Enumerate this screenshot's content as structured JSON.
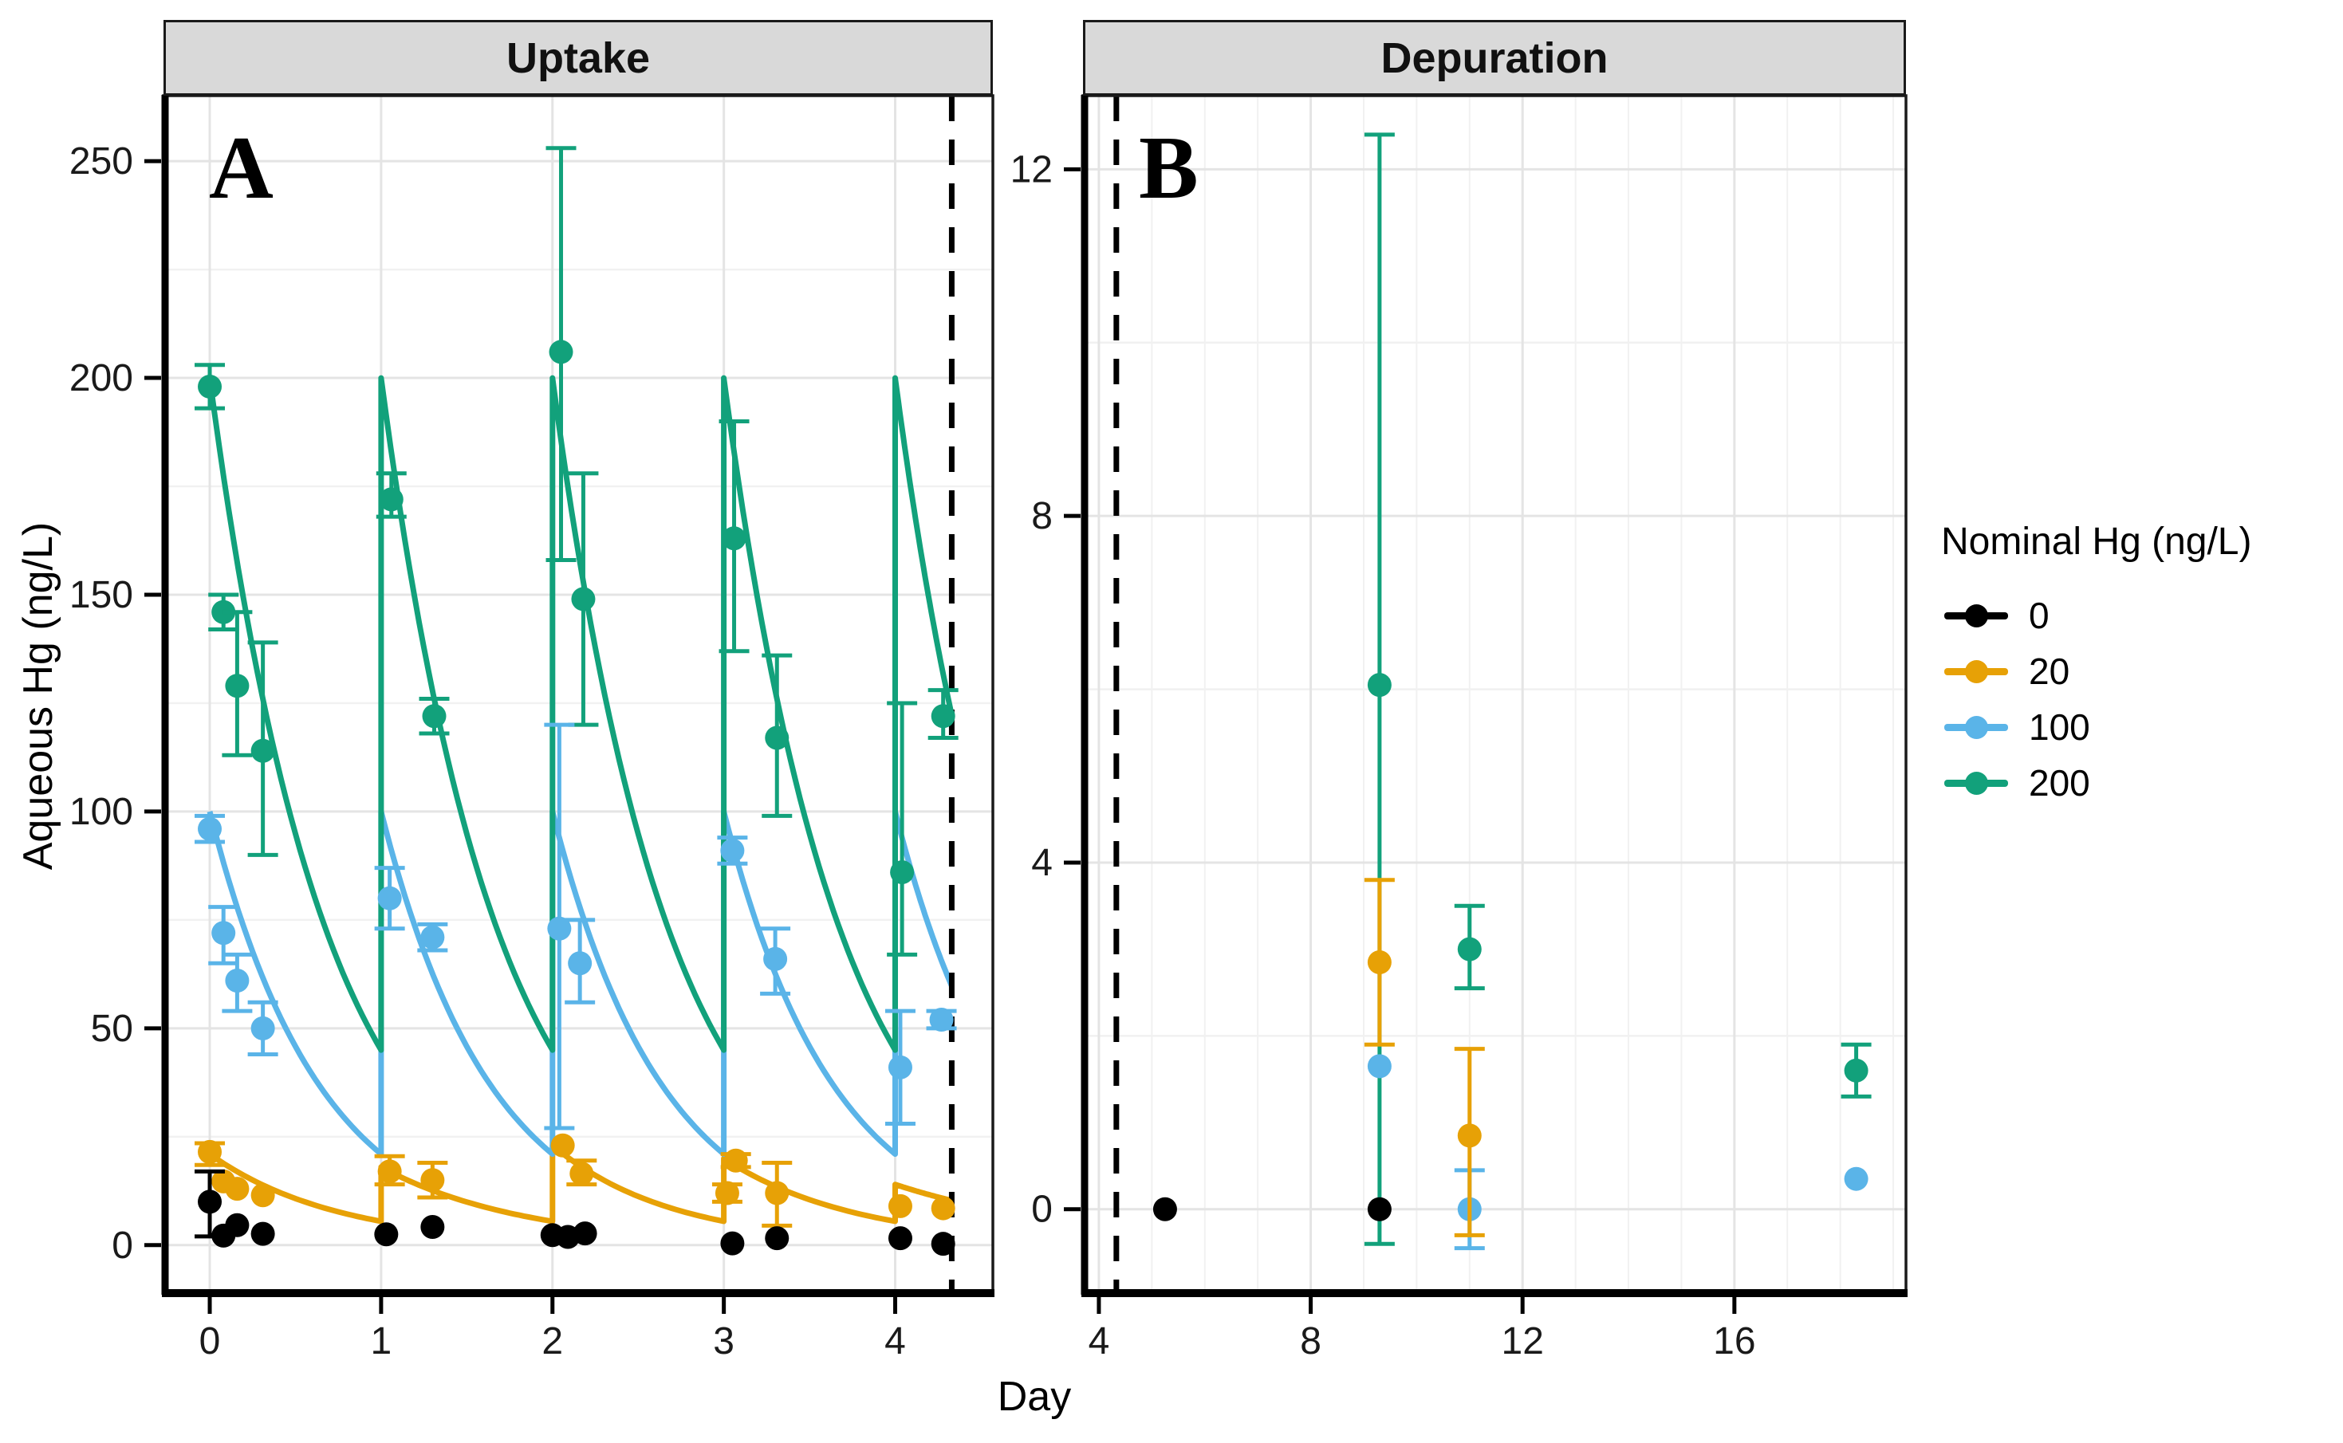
{
  "figure": {
    "x_axis_title": "Day",
    "y_axis_title": "Aqueous Hg (ng/L)",
    "panel_a": {
      "strip_label": "Uptake",
      "letter": "A"
    },
    "panel_b": {
      "strip_label": "Depuration",
      "letter": "B"
    },
    "legend": {
      "title": "Nominal Hg (ng/L)",
      "items": [
        {
          "label": "0",
          "color": "#000000"
        },
        {
          "label": "20",
          "color": "#E7A106"
        },
        {
          "label": "100",
          "color": "#5AB4E8"
        },
        {
          "label": "200",
          "color": "#12A17B"
        }
      ]
    },
    "colors": {
      "accent_green": "#12A17B",
      "accent_blue": "#5AB4E8",
      "accent_orange": "#E7A106",
      "strip_bg": "#D9D9D9",
      "grid_major": "#E4E4E4",
      "grid_minor": "#F1F1F1"
    }
  },
  "chart_data": [
    {
      "type": "line",
      "title": "Uptake",
      "xlabel": "Day",
      "ylabel": "Aqueous Hg (ng/L)",
      "xlim": [
        -0.27,
        4.57
      ],
      "ylim": [
        -10.7,
        265.1
      ],
      "xticks": [
        0,
        1,
        2,
        3,
        4
      ],
      "yticks": [
        0,
        50,
        100,
        150,
        200,
        250
      ],
      "yminor": [
        25,
        75,
        125,
        175,
        225
      ],
      "xminor": [],
      "grid": true,
      "dashed_vline_x": 4.33,
      "legend_position": "right",
      "series": [
        {
          "name": "0",
          "color": "#000000",
          "points": [
            [
              0.0,
              10,
              2,
              17
            ],
            [
              0.08,
              2.2
            ],
            [
              0.16,
              4.6
            ],
            [
              0.31,
              2.6
            ],
            [
              1.03,
              2.5
            ],
            [
              1.3,
              4.2
            ],
            [
              2.0,
              2.3
            ],
            [
              2.09,
              1.9
            ],
            [
              2.19,
              2.7
            ],
            [
              3.05,
              0.4
            ],
            [
              3.31,
              1.6
            ],
            [
              4.03,
              1.6
            ],
            [
              4.28,
              0.3
            ]
          ]
        },
        {
          "name": "20",
          "color": "#E7A106",
          "line": {
            "peaks": [
              21,
              18,
              23,
              20,
              14
            ],
            "trough": 5.5,
            "x_end": 4.33
          },
          "points": [
            [
              0.0,
              21.5,
              18.5,
              23.5
            ],
            [
              0.08,
              14.7
            ],
            [
              0.16,
              13
            ],
            [
              0.31,
              11.5
            ],
            [
              1.05,
              17,
              14,
              20.5
            ],
            [
              1.3,
              15,
              11,
              19
            ],
            [
              2.06,
              23
            ],
            [
              2.17,
              16.5,
              14,
              19.5
            ],
            [
              3.02,
              12,
              10,
              14
            ],
            [
              3.07,
              19.5,
              18,
              21
            ],
            [
              3.31,
              12,
              4.5,
              19
            ],
            [
              4.03,
              9
            ],
            [
              4.28,
              8.5
            ]
          ]
        },
        {
          "name": "100",
          "color": "#5AB4E8",
          "line": {
            "peaks": [
              100,
              100,
              100,
              100,
              100
            ],
            "trough": 21,
            "x_end": 4.33
          },
          "points": [
            [
              0.0,
              96,
              93,
              99
            ],
            [
              0.08,
              72,
              65,
              78
            ],
            [
              0.16,
              61,
              54,
              67
            ],
            [
              0.31,
              50,
              44,
              56
            ],
            [
              1.05,
              80,
              73,
              87
            ],
            [
              1.3,
              71,
              68,
              74
            ],
            [
              2.04,
              73,
              27,
              120
            ],
            [
              2.16,
              65,
              56,
              75
            ],
            [
              3.05,
              91,
              88,
              94
            ],
            [
              3.3,
              66,
              58,
              73
            ],
            [
              4.03,
              41,
              28,
              54
            ],
            [
              4.27,
              52,
              50,
              54
            ]
          ]
        },
        {
          "name": "200",
          "color": "#12A17B",
          "line": {
            "peaks": [
              200,
              200,
              200,
              200,
              200
            ],
            "trough": 45,
            "x_end": 4.33
          },
          "points": [
            [
              0.0,
              198,
              193,
              203
            ],
            [
              0.08,
              146,
              142,
              150
            ],
            [
              0.16,
              129,
              113,
              146
            ],
            [
              0.31,
              114,
              90,
              139
            ],
            [
              1.06,
              172,
              168,
              178
            ],
            [
              1.31,
              122,
              118,
              126
            ],
            [
              2.05,
              206,
              158,
              253
            ],
            [
              2.18,
              149,
              120,
              178
            ],
            [
              3.06,
              163,
              137,
              190
            ],
            [
              3.31,
              117,
              99,
              136
            ],
            [
              4.04,
              86,
              67,
              125
            ],
            [
              4.28,
              122,
              117,
              128
            ]
          ]
        }
      ]
    },
    {
      "type": "scatter",
      "title": "Depuration",
      "xlabel": "Day",
      "ylabel": "Aqueous Hg (ng/L)",
      "xlim": [
        3.7,
        19.24
      ],
      "ylim": [
        -0.95,
        12.85
      ],
      "xticks": [
        4,
        8,
        12,
        16
      ],
      "yticks": [
        0,
        4,
        8,
        12
      ],
      "yminor": [
        2,
        6,
        10
      ],
      "xminor": [
        5,
        6,
        7,
        9,
        10,
        11,
        13,
        14,
        15,
        17,
        18,
        19
      ],
      "grid": true,
      "dashed_vline_x": 4.33,
      "legend_position": "right",
      "series": [
        {
          "name": "0",
          "color": "#000000",
          "points": [
            [
              5.25,
              0
            ],
            [
              9.3,
              0
            ]
          ]
        },
        {
          "name": "20",
          "color": "#E7A106",
          "points": [
            [
              9.3,
              2.85,
              1.9,
              3.8
            ],
            [
              11.0,
              0.85,
              -0.3,
              1.85
            ]
          ]
        },
        {
          "name": "100",
          "color": "#5AB4E8",
          "points": [
            [
              9.3,
              1.65
            ],
            [
              11.0,
              0,
              -0.45,
              0.45
            ],
            [
              18.3,
              0.35
            ]
          ]
        },
        {
          "name": "200",
          "color": "#12A17B",
          "points": [
            [
              9.3,
              6.05,
              -0.4,
              12.4
            ],
            [
              11.0,
              3.0,
              2.55,
              3.5
            ],
            [
              18.3,
              1.6,
              1.3,
              1.9
            ]
          ]
        }
      ]
    }
  ]
}
